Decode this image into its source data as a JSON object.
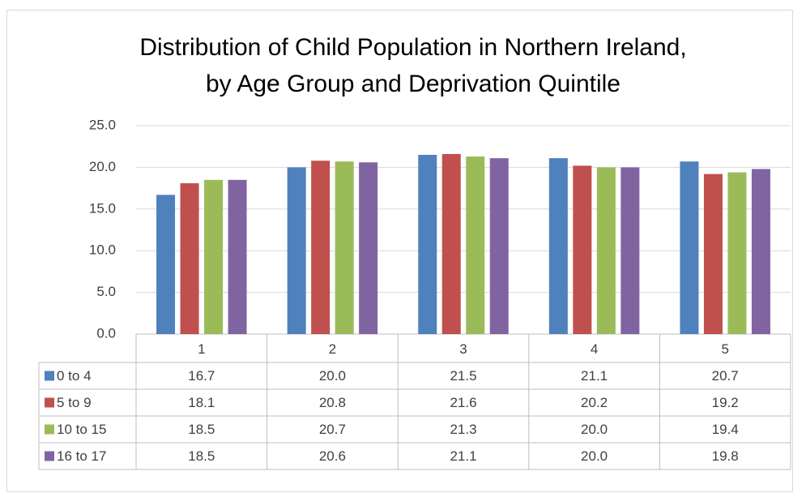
{
  "chart_data": {
    "type": "bar",
    "title": [
      "Distribution of Child Population in Northern Ireland,",
      "by Age Group and Deprivation Quintile"
    ],
    "categories": [
      "1",
      "2",
      "3",
      "4",
      "5"
    ],
    "series": [
      {
        "name": "0 to 4",
        "color": "#4f81bd",
        "values": [
          16.7,
          20.0,
          21.5,
          21.1,
          20.7
        ],
        "value_labels": [
          "16.7",
          "20.0",
          "21.5",
          "21.1",
          "20.7"
        ]
      },
      {
        "name": "5 to 9",
        "color": "#c0504d",
        "values": [
          18.1,
          20.8,
          21.6,
          20.2,
          19.2
        ],
        "value_labels": [
          "18.1",
          "20.8",
          "21.6",
          "20.2",
          "19.2"
        ]
      },
      {
        "name": "10 to 15",
        "color": "#9bbb59",
        "values": [
          18.5,
          20.7,
          21.3,
          20.0,
          19.4
        ],
        "value_labels": [
          "18.5",
          "20.7",
          "21.3",
          "20.0",
          "19.4"
        ]
      },
      {
        "name": "16 to 17",
        "color": "#8064a2",
        "values": [
          18.5,
          20.6,
          21.1,
          20.0,
          19.8
        ],
        "value_labels": [
          "18.5",
          "20.6",
          "21.1",
          "20.0",
          "19.8"
        ]
      }
    ],
    "ylim": [
      0,
      25
    ],
    "yticks": [
      {
        "value": 0,
        "label": "0.0"
      },
      {
        "value": 5,
        "label": "5.0"
      },
      {
        "value": 10,
        "label": "10.0"
      },
      {
        "value": 15,
        "label": "15.0"
      },
      {
        "value": 20,
        "label": "20.0"
      },
      {
        "value": 25,
        "label": "25.0"
      }
    ],
    "grid": true
  }
}
